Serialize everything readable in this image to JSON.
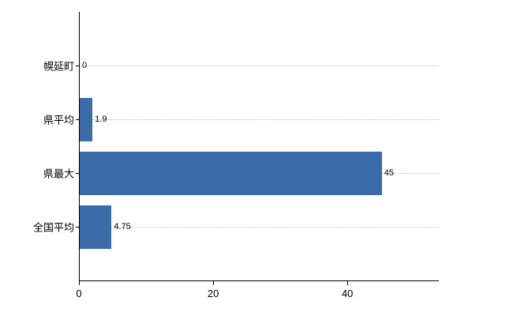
{
  "chart_data": {
    "type": "bar",
    "orientation": "horizontal",
    "title": "",
    "xlabel": "",
    "ylabel": "",
    "categories": [
      "幌延町",
      "県平均",
      "県最大",
      "全国平均"
    ],
    "values": [
      0,
      1.9,
      45,
      4.75
    ],
    "value_labels": [
      "0",
      "1.9",
      "45",
      "4.75"
    ],
    "xlim": [
      0,
      53.5
    ],
    "xticks": [
      0,
      20,
      40
    ],
    "x_tick_labels": [
      "0",
      "20",
      "40"
    ],
    "grid": "horizontal dotted gridline per category",
    "legend": "none"
  },
  "colors": {
    "bar": "#3b6ba8",
    "axis": "#000000",
    "gridline": "#bbbbbb",
    "text": "#000000",
    "background": "#ffffff"
  }
}
